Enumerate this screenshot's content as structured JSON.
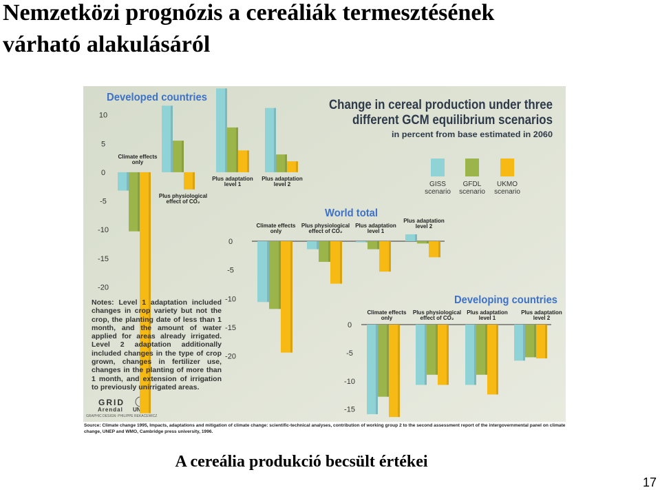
{
  "slide": {
    "title_lines": [
      "Nemzetközi prognózis a cereáliák termesztésének",
      "várható alakulásáról"
    ],
    "caption": "A cereália produkció becsült értékei",
    "page_number": "17"
  },
  "figure": {
    "heading_lines": [
      "Change in cereal production under three",
      "different GCM equilibrium scenarios"
    ],
    "subheading": "in percent from base estimated in 2060",
    "notes": "Notes: Level 1 adaptation included changes in crop variety but not the crop, the planting date of less than 1 month, and the amount of water applied for areas already irrigated. Level 2 adaptation additionally included changes in the type of crop grown, changes in fertilizer use, changes in the planting of more than 1 month, and extension of irrigation to previously unirrigated areas.",
    "logo_grid": "GRID",
    "logo_arendal": "Arendal",
    "logo_unep": "UNEP",
    "credit": "GRAPHIC DESIGN: PHILIPPE REKACEWICZ",
    "source": "Source: Climate change 1995, Impacts, adaptations and mitigation of climate change: scientific-technical analyses, contribution of working group 2 to the second assessment report of the intergovernmental panel on climate change, UNEP and WMO, Cambridge press university, 1996."
  },
  "chart_data": [
    {
      "type": "bar",
      "title": "Developed countries",
      "categories": [
        "Climate effects only",
        "Plus physiological effect of CO₂",
        "Plus adaptation level 1",
        "Plus adaptation level 2"
      ],
      "series": [
        {
          "name": "GISS scenario",
          "color": "#8fd3d6",
          "values": [
            -3.2,
            11.6,
            14.6,
            11.2
          ]
        },
        {
          "name": "GFDL scenario",
          "color": "#9cb54a",
          "values": [
            -10.3,
            5.5,
            7.8,
            3.1
          ]
        },
        {
          "name": "UKMO scenario",
          "color": "#f7b913",
          "values": [
            -42,
            -3,
            3.8,
            1.9
          ]
        }
      ],
      "ylim": [
        -43,
        15
      ],
      "yticks": [
        10,
        5,
        0,
        -5,
        -10,
        -15,
        -20
      ]
    },
    {
      "type": "bar",
      "title": "World total",
      "categories": [
        "Climate effects only",
        "Plus physiological effect of CO₂",
        "Plus adaptation level 1",
        "Plus adaptation level 2"
      ],
      "series": [
        {
          "color": "#8fd3d6",
          "values": [
            -10.6,
            -1.4,
            -0.2,
            1.2
          ]
        },
        {
          "color": "#9cb54a",
          "values": [
            -11.8,
            -3.6,
            -1.4,
            -0.4
          ]
        },
        {
          "color": "#f7b913",
          "values": [
            -19.4,
            -7.4,
            -5.3,
            -2.8
          ]
        }
      ],
      "ylim": [
        -20,
        2
      ],
      "yticks": [
        0,
        -5,
        -10,
        -15,
        -20
      ]
    },
    {
      "type": "bar",
      "title": "Developing countries",
      "categories": [
        "Climate effects only",
        "Plus physiological effect of CO₂",
        "Plus adaptation level 1",
        "Plus adaptation level 2"
      ],
      "series": [
        {
          "color": "#8fd3d6",
          "values": [
            -15.9,
            -10.7,
            -10.7,
            -6.4
          ]
        },
        {
          "color": "#9cb54a",
          "values": [
            -12.8,
            -8.9,
            -8.9,
            -5.8
          ]
        },
        {
          "color": "#f7b913",
          "values": [
            -16.4,
            -10.7,
            -12.4,
            -6.0
          ]
        }
      ],
      "ylim": [
        -17,
        0
      ],
      "yticks": [
        0,
        -5,
        -10,
        -15
      ]
    }
  ]
}
